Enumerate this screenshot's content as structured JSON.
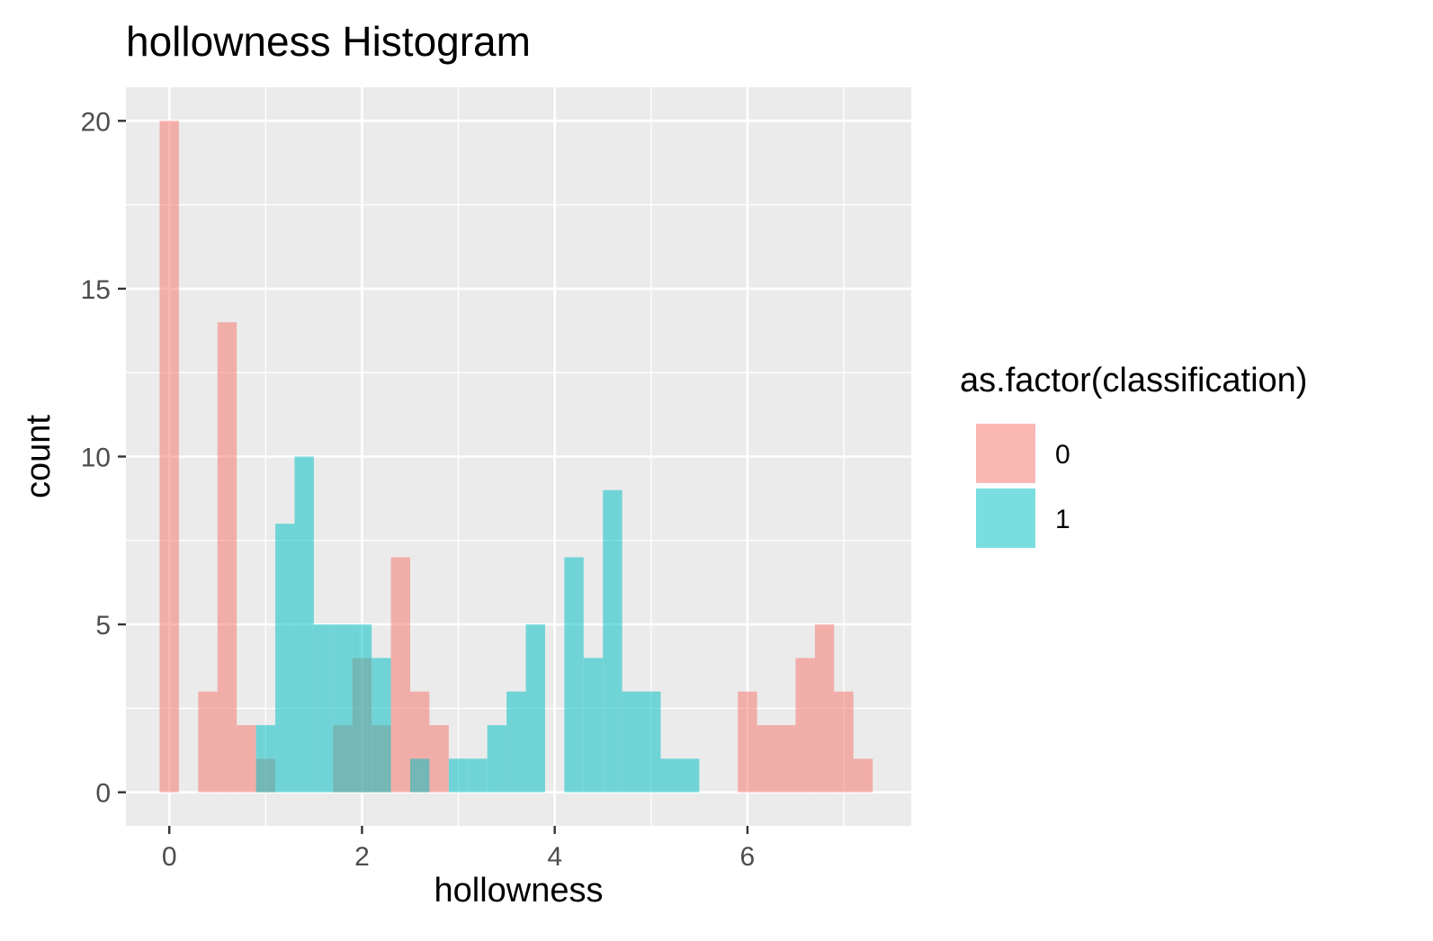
{
  "chart_data": {
    "type": "histogram",
    "title": "hollowness Histogram",
    "xlabel": "hollowness",
    "ylabel": "count",
    "xlim": [
      -0.45,
      7.7
    ],
    "ylim": [
      -1,
      21
    ],
    "x_ticks": [
      0,
      2,
      4,
      6
    ],
    "x_minor_ticks": [
      1,
      3,
      5,
      7
    ],
    "y_ticks": [
      0,
      5,
      10,
      15,
      20
    ],
    "y_minor_ticks": [
      2.5,
      7.5,
      12.5,
      17.5
    ],
    "bin_width": 0.2,
    "grid": true,
    "panel_background": "#EBEBEB",
    "legend": {
      "title": "as.factor(classification)",
      "position": "right"
    },
    "series": [
      {
        "name": "0",
        "color": "#F8766D",
        "bins": [
          {
            "x": 0.0,
            "count": 20
          },
          {
            "x": 0.4,
            "count": 3
          },
          {
            "x": 0.6,
            "count": 14
          },
          {
            "x": 0.8,
            "count": 2
          },
          {
            "x": 1.0,
            "count": 1
          },
          {
            "x": 1.8,
            "count": 2
          },
          {
            "x": 2.0,
            "count": 4
          },
          {
            "x": 2.2,
            "count": 2
          },
          {
            "x": 2.4,
            "count": 7
          },
          {
            "x": 2.6,
            "count": 3
          },
          {
            "x": 2.8,
            "count": 2
          },
          {
            "x": 6.0,
            "count": 3
          },
          {
            "x": 6.2,
            "count": 2
          },
          {
            "x": 6.4,
            "count": 2
          },
          {
            "x": 6.6,
            "count": 4
          },
          {
            "x": 6.8,
            "count": 5
          },
          {
            "x": 7.0,
            "count": 3
          },
          {
            "x": 7.2,
            "count": 1
          }
        ]
      },
      {
        "name": "1",
        "color": "#00BFC4",
        "bins": [
          {
            "x": 1.0,
            "count": 2
          },
          {
            "x": 1.2,
            "count": 8
          },
          {
            "x": 1.4,
            "count": 10
          },
          {
            "x": 1.6,
            "count": 5
          },
          {
            "x": 1.8,
            "count": 5
          },
          {
            "x": 2.0,
            "count": 5
          },
          {
            "x": 2.2,
            "count": 4
          },
          {
            "x": 2.6,
            "count": 1
          },
          {
            "x": 3.0,
            "count": 1
          },
          {
            "x": 3.2,
            "count": 1
          },
          {
            "x": 3.4,
            "count": 2
          },
          {
            "x": 3.6,
            "count": 3
          },
          {
            "x": 3.8,
            "count": 5
          },
          {
            "x": 4.2,
            "count": 7
          },
          {
            "x": 4.4,
            "count": 4
          },
          {
            "x": 4.6,
            "count": 9
          },
          {
            "x": 4.8,
            "count": 3
          },
          {
            "x": 5.0,
            "count": 3
          },
          {
            "x": 5.2,
            "count": 1
          },
          {
            "x": 5.4,
            "count": 1
          }
        ]
      }
    ]
  }
}
